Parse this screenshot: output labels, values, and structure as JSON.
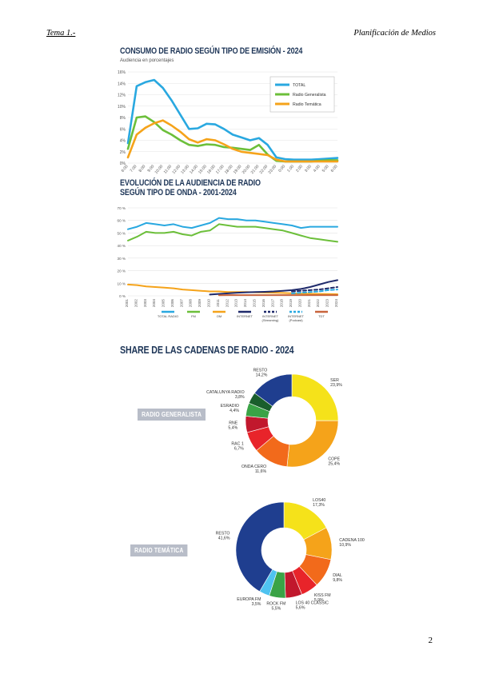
{
  "header": {
    "left": "Tema 1.-",
    "right": "Planificación de Medios"
  },
  "page_number": "2",
  "chart_data": [
    {
      "type": "line",
      "title": "CONSUMO DE RADIO SEGÚN TIPO DE EMISIÓN - 2024",
      "subtitle": "Audiencia en porcentajes",
      "x": [
        "6:00",
        "7:00",
        "8:00",
        "9:00",
        "10:00",
        "11:00",
        "12:00",
        "13:00",
        "14:00",
        "15:00",
        "16:00",
        "17:00",
        "18:00",
        "19:00",
        "20:00",
        "21:00",
        "22:00",
        "23:00",
        "0:00",
        "1:00",
        "2:00",
        "3:00",
        "4:00",
        "5:00",
        "6:00"
      ],
      "yticks": [
        "0%",
        "2%",
        "4%",
        "6%",
        "8%",
        "10%",
        "12%",
        "14%",
        "16%"
      ],
      "ylim": [
        0,
        16
      ],
      "series": [
        {
          "name": "TOTAL",
          "color": "#29a8e0",
          "values": [
            3.5,
            13.5,
            14.2,
            14.6,
            13.2,
            11.0,
            8.5,
            6.0,
            6.1,
            6.9,
            6.8,
            6.0,
            5.0,
            4.5,
            4.0,
            4.4,
            3.2,
            1.0,
            0.7,
            0.6,
            0.6,
            0.6,
            0.7,
            0.8,
            0.9
          ]
        },
        {
          "name": "Radio Generalista",
          "color": "#6cbf3a",
          "values": [
            2.5,
            8.0,
            8.2,
            7.2,
            5.8,
            5.0,
            4.0,
            3.2,
            3.0,
            3.3,
            3.2,
            2.8,
            2.7,
            2.5,
            2.3,
            3.2,
            1.5,
            0.4,
            0.3,
            0.3,
            0.3,
            0.3,
            0.4,
            0.5,
            0.5
          ]
        },
        {
          "name": "Radio Temática",
          "color": "#f5a31a",
          "values": [
            1.0,
            5.0,
            6.2,
            7.0,
            7.5,
            6.6,
            5.5,
            4.2,
            3.6,
            4.2,
            4.0,
            3.3,
            2.5,
            2.0,
            1.8,
            1.6,
            1.4,
            0.6,
            0.3,
            0.3,
            0.3,
            0.3,
            0.3,
            0.3,
            0.3
          ]
        }
      ]
    },
    {
      "type": "line",
      "title": "EVOLUCIÓN DE LA AUDIENCIA DE RADIO SEGÚN TIPO DE ONDA - 2001-2024",
      "title_lines": [
        "EVOLUCIÓN DE LA AUDIENCIA DE RADIO",
        "SEGÚN TIPO DE ONDA - 2001-2024"
      ],
      "x": [
        "2001",
        "2002",
        "2003",
        "2004",
        "2005",
        "2006",
        "2007",
        "2008",
        "2009",
        "2010",
        "2011",
        "2012",
        "2013",
        "2014",
        "2015",
        "2016",
        "2017",
        "2018",
        "2019",
        "2020",
        "2021",
        "2022",
        "2023",
        "2024"
      ],
      "yticks": [
        "0 %",
        "10 %",
        "20 %",
        "30 %",
        "40 %",
        "50 %",
        "60 %",
        "70 %"
      ],
      "ylim": [
        0,
        70
      ],
      "series": [
        {
          "name": "TOTAL RADIO",
          "color": "#29a8e0",
          "dash": "",
          "values": [
            53,
            55,
            58,
            57,
            56,
            57,
            55,
            54,
            56,
            58,
            62,
            61,
            61,
            60,
            60,
            59,
            58,
            57,
            56,
            54,
            55,
            55,
            55,
            55
          ]
        },
        {
          "name": "FM",
          "color": "#6cbf3a",
          "dash": "",
          "values": [
            44,
            47,
            51,
            50,
            50,
            51,
            49,
            48,
            51,
            52,
            57,
            56,
            55,
            55,
            55,
            54,
            53,
            52,
            50,
            48,
            46,
            45,
            44,
            43
          ]
        },
        {
          "name": "OM",
          "color": "#f5a31a",
          "dash": "",
          "values": [
            9,
            8.5,
            7.5,
            7,
            6.5,
            6,
            5,
            4.5,
            4,
            3.5,
            3.5,
            3,
            3,
            3,
            2.8,
            2.6,
            2.5,
            2.3,
            2,
            1.8,
            1.6,
            1.5,
            1.4,
            1.3
          ]
        },
        {
          "name": "INTERNET",
          "color": "#1f2a6b",
          "dash": "",
          "values": [
            null,
            null,
            null,
            null,
            null,
            null,
            null,
            null,
            null,
            1,
            1.5,
            2,
            2.5,
            2.8,
            3,
            3.2,
            3.5,
            4,
            4.5,
            5.5,
            7,
            9,
            11,
            12.5
          ]
        },
        {
          "name": "INTERNET (Streaming)",
          "color": "#1f2a6b",
          "dash": "4,3",
          "values": [
            null,
            null,
            null,
            null,
            null,
            null,
            null,
            null,
            null,
            null,
            null,
            null,
            null,
            null,
            null,
            null,
            null,
            null,
            3.5,
            4,
            4.5,
            5,
            6,
            7
          ]
        },
        {
          "name": "INTERNET (Podcast)",
          "color": "#29a8e0",
          "dash": "4,3",
          "values": [
            null,
            null,
            null,
            null,
            null,
            null,
            null,
            null,
            null,
            null,
            null,
            null,
            null,
            null,
            null,
            null,
            null,
            null,
            2,
            2.5,
            3,
            3.5,
            4.5,
            5
          ]
        },
        {
          "name": "TDT",
          "color": "#c8643c",
          "dash": "",
          "values": [
            null,
            null,
            null,
            null,
            null,
            null,
            null,
            null,
            null,
            null,
            0.5,
            0.6,
            0.6,
            0.6,
            0.6,
            0.6,
            0.6,
            0.6,
            0.6,
            0.6,
            0.6,
            0.6,
            0.6,
            0.6
          ]
        }
      ]
    },
    {
      "type": "pie",
      "title": "SHARE DE LAS CADENAS DE RADIO - 2024",
      "tag": "RADIO GENERALISTA",
      "slices": [
        {
          "name": "SER",
          "label": "23,9%",
          "value": 23.9,
          "color": "#f5e21a"
        },
        {
          "name": "COPE",
          "label": "25,4%",
          "value": 25.4,
          "color": "#f5a31a"
        },
        {
          "name": "ONDA CERO",
          "label": "11,6%",
          "value": 11.6,
          "color": "#f26a1b"
        },
        {
          "name": "RAC 1",
          "label": "6,7%",
          "value": 6.7,
          "color": "#e8242a"
        },
        {
          "name": "RNE",
          "label": "5,4%",
          "value": 5.4,
          "color": "#c1182d"
        },
        {
          "name": "ESRADIO",
          "label": "4,4%",
          "value": 4.4,
          "color": "#3aa346"
        },
        {
          "name": "CATALUNYA RADIO",
          "label": "3,8%",
          "value": 3.8,
          "color": "#1a5e2c"
        },
        {
          "name": "RESTO",
          "label": "14,2%",
          "value": 14.2,
          "color": "#1f3e8f"
        }
      ]
    },
    {
      "type": "pie",
      "tag": "RADIO TEMÁTICA",
      "slices": [
        {
          "name": "LOS40",
          "label": "17,3%",
          "value": 17.3,
          "color": "#f5e21a"
        },
        {
          "name": "CADENA 100",
          "label": "10,9%",
          "value": 10.9,
          "color": "#f5a31a"
        },
        {
          "name": "DIAL",
          "label": "9,8%",
          "value": 9.8,
          "color": "#f26a1b"
        },
        {
          "name": "KISS FM",
          "label": "5,9%",
          "value": 5.9,
          "color": "#e8242a"
        },
        {
          "name": "LOS 40 CLASSIC",
          "label": "5,6%",
          "value": 5.6,
          "color": "#c1182d"
        },
        {
          "name": "ROCK FM",
          "label": "5,5%",
          "value": 5.5,
          "color": "#3aa346"
        },
        {
          "name": "EUROPA FM",
          "label": "3,5%",
          "value": 3.5,
          "color": "#4fc3f0"
        },
        {
          "name": "RESTO",
          "label": "41,6%",
          "value": 41.6,
          "color": "#1f3e8f"
        }
      ]
    }
  ]
}
